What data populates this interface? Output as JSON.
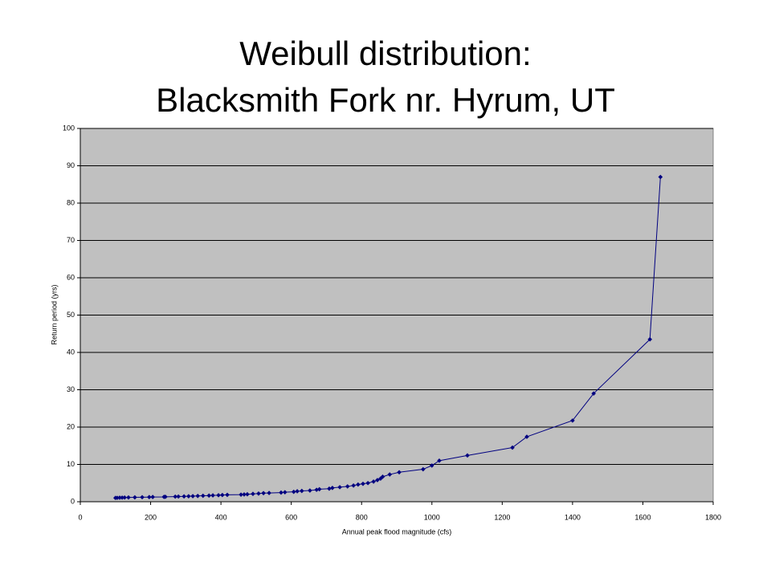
{
  "chart_data": {
    "type": "line",
    "title": [
      "Weibull distribution:",
      "Blacksmith Fork nr. Hyrum, UT"
    ],
    "x_label": "Annual peak flood magnitude (cfs)",
    "y_label": "Return period (yrs)",
    "x": [
      100,
      105,
      112,
      119,
      126,
      137,
      155,
      176,
      196,
      206,
      238,
      242,
      270,
      279,
      295,
      308,
      320,
      334,
      349,
      366,
      377,
      393,
      404,
      418,
      457,
      466,
      475,
      491,
      507,
      521,
      537,
      571,
      582,
      607,
      617,
      630,
      653,
      672,
      680,
      708,
      717,
      738,
      760,
      777,
      790,
      804,
      818,
      834,
      845,
      854,
      860,
      880,
      907,
      975,
      1000,
      1021,
      1101,
      1229,
      1270,
      1400,
      1460,
      1620,
      1650
    ],
    "values": [
      1.03,
      1.05,
      1.08,
      1.1,
      1.13,
      1.15,
      1.18,
      1.21,
      1.24,
      1.27,
      1.3,
      1.33,
      1.37,
      1.4,
      1.43,
      1.47,
      1.5,
      1.55,
      1.6,
      1.65,
      1.7,
      1.75,
      1.8,
      1.85,
      1.9,
      1.95,
      2.0,
      2.1,
      2.2,
      2.3,
      2.35,
      2.45,
      2.55,
      2.65,
      2.8,
      2.9,
      3.0,
      3.2,
      3.35,
      3.5,
      3.7,
      3.9,
      4.1,
      4.35,
      4.6,
      4.8,
      5.0,
      5.4,
      5.8,
      6.2,
      6.7,
      7.3,
      7.9,
      8.7,
      9.7,
      11,
      12.4,
      14.5,
      17.4,
      21.75,
      29,
      43.5,
      87
    ],
    "color": "#000080",
    "xlim": [
      0,
      1800
    ],
    "xticks": [
      0,
      200,
      400,
      600,
      800,
      1000,
      1200,
      1400,
      1600,
      1800
    ],
    "ylim": [
      0,
      100
    ],
    "yticks": [
      0,
      10,
      20,
      30,
      40,
      50,
      60,
      70,
      80,
      90,
      100
    ],
    "grid": true
  }
}
